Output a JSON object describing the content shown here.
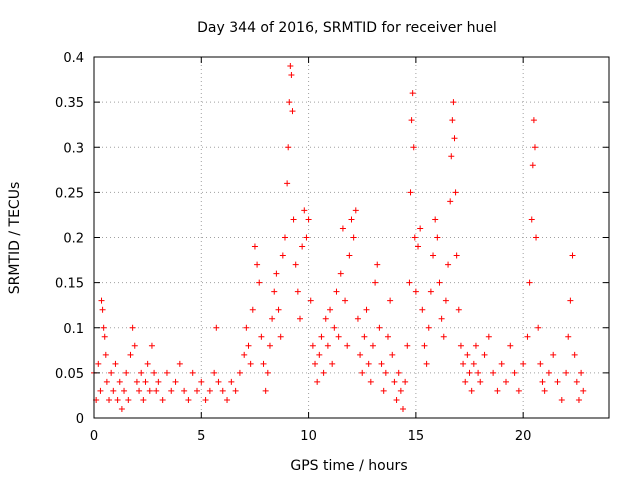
{
  "chart_data": {
    "type": "scatter",
    "title": "Day 344 of 2016, SRMTID for receiver huel",
    "xlabel": "GPS time / hours",
    "ylabel": "SRMTID / TECUs",
    "xlim": [
      0,
      24
    ],
    "ylim": [
      0,
      0.4
    ],
    "xticks": [
      0,
      5,
      10,
      15,
      20
    ],
    "xtick_labels": [
      "0",
      "5",
      "10",
      "15",
      "20"
    ],
    "yticks": [
      0,
      0.05,
      0.1,
      0.15,
      0.2,
      0.25,
      0.3,
      0.35,
      0.4
    ],
    "ytick_labels": [
      "0",
      "0.05",
      "0.1",
      "0.15",
      "0.2",
      "0.25",
      "0.3",
      "0.35",
      "0.4"
    ],
    "grid": true,
    "marker": "+",
    "series": [
      {
        "name": "SRMTID",
        "color": "#ff0000",
        "points": [
          [
            0.0,
            0.05
          ],
          [
            0.1,
            0.02
          ],
          [
            0.2,
            0.06
          ],
          [
            0.3,
            0.03
          ],
          [
            0.35,
            0.13
          ],
          [
            0.4,
            0.12
          ],
          [
            0.45,
            0.1
          ],
          [
            0.5,
            0.09
          ],
          [
            0.55,
            0.07
          ],
          [
            0.6,
            0.04
          ],
          [
            0.7,
            0.02
          ],
          [
            0.8,
            0.05
          ],
          [
            0.9,
            0.03
          ],
          [
            1.0,
            0.06
          ],
          [
            1.1,
            0.02
          ],
          [
            1.2,
            0.04
          ],
          [
            1.3,
            0.01
          ],
          [
            1.4,
            0.03
          ],
          [
            1.5,
            0.05
          ],
          [
            1.6,
            0.02
          ],
          [
            1.7,
            0.07
          ],
          [
            1.8,
            0.1
          ],
          [
            1.9,
            0.08
          ],
          [
            2.0,
            0.04
          ],
          [
            2.1,
            0.03
          ],
          [
            2.2,
            0.05
          ],
          [
            2.3,
            0.02
          ],
          [
            2.4,
            0.04
          ],
          [
            2.5,
            0.06
          ],
          [
            2.6,
            0.03
          ],
          [
            2.7,
            0.08
          ],
          [
            2.8,
            0.05
          ],
          [
            2.9,
            0.03
          ],
          [
            3.0,
            0.04
          ],
          [
            3.2,
            0.02
          ],
          [
            3.4,
            0.05
          ],
          [
            3.6,
            0.03
          ],
          [
            3.8,
            0.04
          ],
          [
            4.0,
            0.06
          ],
          [
            4.2,
            0.03
          ],
          [
            4.4,
            0.02
          ],
          [
            4.6,
            0.05
          ],
          [
            4.8,
            0.03
          ],
          [
            5.0,
            0.04
          ],
          [
            5.2,
            0.02
          ],
          [
            5.4,
            0.03
          ],
          [
            5.6,
            0.05
          ],
          [
            5.7,
            0.1
          ],
          [
            5.8,
            0.04
          ],
          [
            6.0,
            0.03
          ],
          [
            6.2,
            0.02
          ],
          [
            6.4,
            0.04
          ],
          [
            6.6,
            0.03
          ],
          [
            6.8,
            0.05
          ],
          [
            7.0,
            0.07
          ],
          [
            7.1,
            0.1
          ],
          [
            7.2,
            0.08
          ],
          [
            7.3,
            0.06
          ],
          [
            7.4,
            0.12
          ],
          [
            7.5,
            0.19
          ],
          [
            7.6,
            0.17
          ],
          [
            7.7,
            0.15
          ],
          [
            7.8,
            0.09
          ],
          [
            7.9,
            0.06
          ],
          [
            8.0,
            0.03
          ],
          [
            8.1,
            0.05
          ],
          [
            8.2,
            0.08
          ],
          [
            8.3,
            0.11
          ],
          [
            8.4,
            0.14
          ],
          [
            8.5,
            0.16
          ],
          [
            8.6,
            0.12
          ],
          [
            8.7,
            0.09
          ],
          [
            8.8,
            0.18
          ],
          [
            8.9,
            0.2
          ],
          [
            9.0,
            0.26
          ],
          [
            9.05,
            0.3
          ],
          [
            9.1,
            0.35
          ],
          [
            9.15,
            0.39
          ],
          [
            9.2,
            0.38
          ],
          [
            9.25,
            0.34
          ],
          [
            9.3,
            0.22
          ],
          [
            9.4,
            0.17
          ],
          [
            9.5,
            0.14
          ],
          [
            9.6,
            0.11
          ],
          [
            9.7,
            0.19
          ],
          [
            9.8,
            0.23
          ],
          [
            9.9,
            0.2
          ],
          [
            10.0,
            0.22
          ],
          [
            10.1,
            0.13
          ],
          [
            10.2,
            0.08
          ],
          [
            10.3,
            0.06
          ],
          [
            10.4,
            0.04
          ],
          [
            10.5,
            0.07
          ],
          [
            10.6,
            0.09
          ],
          [
            10.7,
            0.05
          ],
          [
            10.8,
            0.11
          ],
          [
            10.9,
            0.08
          ],
          [
            11.0,
            0.12
          ],
          [
            11.1,
            0.06
          ],
          [
            11.2,
            0.1
          ],
          [
            11.3,
            0.14
          ],
          [
            11.4,
            0.09
          ],
          [
            11.5,
            0.16
          ],
          [
            11.6,
            0.21
          ],
          [
            11.7,
            0.13
          ],
          [
            11.8,
            0.08
          ],
          [
            11.9,
            0.18
          ],
          [
            12.0,
            0.22
          ],
          [
            12.1,
            0.2
          ],
          [
            12.2,
            0.23
          ],
          [
            12.3,
            0.11
          ],
          [
            12.4,
            0.07
          ],
          [
            12.5,
            0.05
          ],
          [
            12.6,
            0.09
          ],
          [
            12.7,
            0.12
          ],
          [
            12.8,
            0.06
          ],
          [
            12.9,
            0.04
          ],
          [
            13.0,
            0.08
          ],
          [
            13.1,
            0.15
          ],
          [
            13.2,
            0.17
          ],
          [
            13.3,
            0.1
          ],
          [
            13.4,
            0.06
          ],
          [
            13.5,
            0.03
          ],
          [
            13.6,
            0.05
          ],
          [
            13.7,
            0.09
          ],
          [
            13.8,
            0.13
          ],
          [
            13.9,
            0.07
          ],
          [
            14.0,
            0.04
          ],
          [
            14.1,
            0.02
          ],
          [
            14.2,
            0.05
          ],
          [
            14.3,
            0.03
          ],
          [
            14.4,
            0.01
          ],
          [
            14.5,
            0.04
          ],
          [
            14.6,
            0.08
          ],
          [
            14.7,
            0.15
          ],
          [
            14.75,
            0.25
          ],
          [
            14.8,
            0.33
          ],
          [
            14.85,
            0.36
          ],
          [
            14.9,
            0.3
          ],
          [
            14.95,
            0.2
          ],
          [
            15.0,
            0.14
          ],
          [
            15.1,
            0.19
          ],
          [
            15.2,
            0.21
          ],
          [
            15.3,
            0.12
          ],
          [
            15.4,
            0.08
          ],
          [
            15.5,
            0.06
          ],
          [
            15.6,
            0.1
          ],
          [
            15.7,
            0.14
          ],
          [
            15.8,
            0.18
          ],
          [
            15.9,
            0.22
          ],
          [
            16.0,
            0.2
          ],
          [
            16.1,
            0.15
          ],
          [
            16.2,
            0.11
          ],
          [
            16.3,
            0.09
          ],
          [
            16.4,
            0.13
          ],
          [
            16.5,
            0.17
          ],
          [
            16.6,
            0.24
          ],
          [
            16.65,
            0.29
          ],
          [
            16.7,
            0.33
          ],
          [
            16.75,
            0.35
          ],
          [
            16.8,
            0.31
          ],
          [
            16.85,
            0.25
          ],
          [
            16.9,
            0.18
          ],
          [
            17.0,
            0.12
          ],
          [
            17.1,
            0.08
          ],
          [
            17.2,
            0.06
          ],
          [
            17.3,
            0.04
          ],
          [
            17.4,
            0.07
          ],
          [
            17.5,
            0.05
          ],
          [
            17.6,
            0.03
          ],
          [
            17.7,
            0.06
          ],
          [
            17.8,
            0.08
          ],
          [
            17.9,
            0.05
          ],
          [
            18.0,
            0.04
          ],
          [
            18.2,
            0.07
          ],
          [
            18.4,
            0.09
          ],
          [
            18.6,
            0.05
          ],
          [
            18.8,
            0.03
          ],
          [
            19.0,
            0.06
          ],
          [
            19.2,
            0.04
          ],
          [
            19.4,
            0.08
          ],
          [
            19.6,
            0.05
          ],
          [
            19.8,
            0.03
          ],
          [
            20.0,
            0.06
          ],
          [
            20.2,
            0.09
          ],
          [
            20.3,
            0.15
          ],
          [
            20.4,
            0.22
          ],
          [
            20.45,
            0.28
          ],
          [
            20.5,
            0.33
          ],
          [
            20.55,
            0.3
          ],
          [
            20.6,
            0.2
          ],
          [
            20.7,
            0.1
          ],
          [
            20.8,
            0.06
          ],
          [
            20.9,
            0.04
          ],
          [
            21.0,
            0.03
          ],
          [
            21.2,
            0.05
          ],
          [
            21.4,
            0.07
          ],
          [
            21.6,
            0.04
          ],
          [
            21.8,
            0.02
          ],
          [
            22.0,
            0.05
          ],
          [
            22.1,
            0.09
          ],
          [
            22.2,
            0.13
          ],
          [
            22.3,
            0.18
          ],
          [
            22.4,
            0.07
          ],
          [
            22.5,
            0.04
          ],
          [
            22.6,
            0.02
          ],
          [
            22.7,
            0.05
          ],
          [
            22.8,
            0.03
          ]
        ]
      }
    ]
  }
}
